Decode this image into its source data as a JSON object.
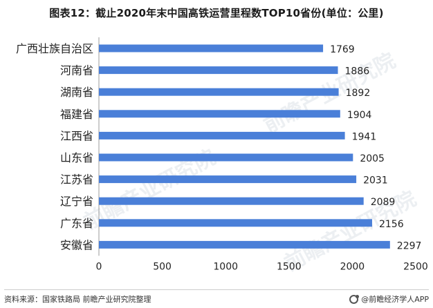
{
  "title": "图表12：截止2020年末中国高铁运营里程数TOP10省份(单位：公里)",
  "footer": {
    "source": "资料来源：国家铁路局 前瞻产业研究院整理",
    "brand": "@前瞻经济学人APP"
  },
  "watermark": "前瞻产业研究院",
  "colors": {
    "bar": "#4a7fd8",
    "axis": "#999999",
    "text": "#222222"
  },
  "chart_data": {
    "type": "bar",
    "orientation": "horizontal",
    "categories": [
      "广西壮族自治区",
      "河南省",
      "湖南省",
      "福建省",
      "江西省",
      "山东省",
      "江苏省",
      "辽宁省",
      "广东省",
      "安徽省"
    ],
    "values": [
      1769,
      1886,
      1892,
      1904,
      1941,
      2005,
      2031,
      2089,
      2156,
      2297
    ],
    "xlim": [
      0,
      2500
    ],
    "xticks": [
      0,
      500,
      1000,
      1500,
      2000,
      2500
    ],
    "data_labels": true,
    "grid": false
  }
}
